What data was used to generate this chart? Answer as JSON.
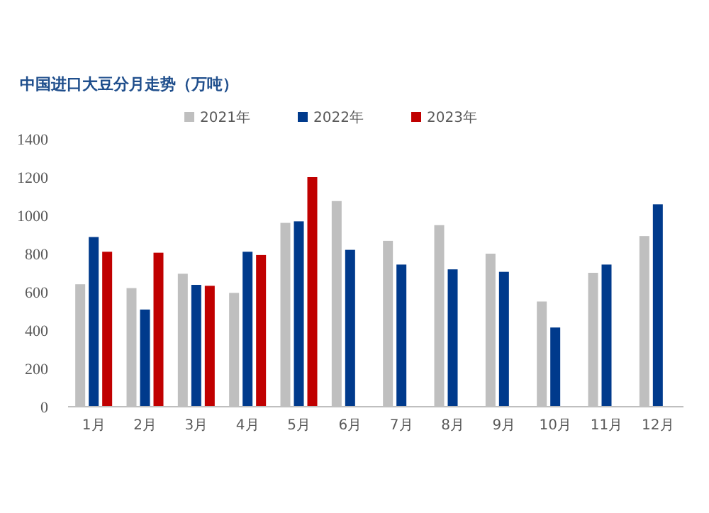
{
  "chart_data": {
    "type": "bar",
    "title": "中国进口大豆分月走势（万吨）",
    "categories": [
      "1月",
      "2月",
      "3月",
      "4月",
      "5月",
      "6月",
      "7月",
      "8月",
      "9月",
      "10月",
      "11月",
      "12月"
    ],
    "series": [
      {
        "name": "2021年",
        "color": "#bfbfbf",
        "values": [
          640,
          620,
          695,
          595,
          961,
          1075,
          867,
          949,
          800,
          550,
          700,
          892
        ]
      },
      {
        "name": "2022年",
        "color": "#003a8c",
        "values": [
          887,
          508,
          637,
          810,
          969,
          820,
          743,
          718,
          705,
          414,
          743,
          1058
        ]
      },
      {
        "name": "2023年",
        "color": "#c00000",
        "values": [
          810,
          805,
          632,
          793,
          1200,
          null,
          null,
          null,
          null,
          null,
          null,
          null
        ]
      }
    ],
    "ylim": [
      0,
      1400
    ],
    "yticks": [
      0,
      200,
      400,
      600,
      800,
      1000,
      1200,
      1400
    ],
    "grid": false,
    "legend": "top"
  }
}
